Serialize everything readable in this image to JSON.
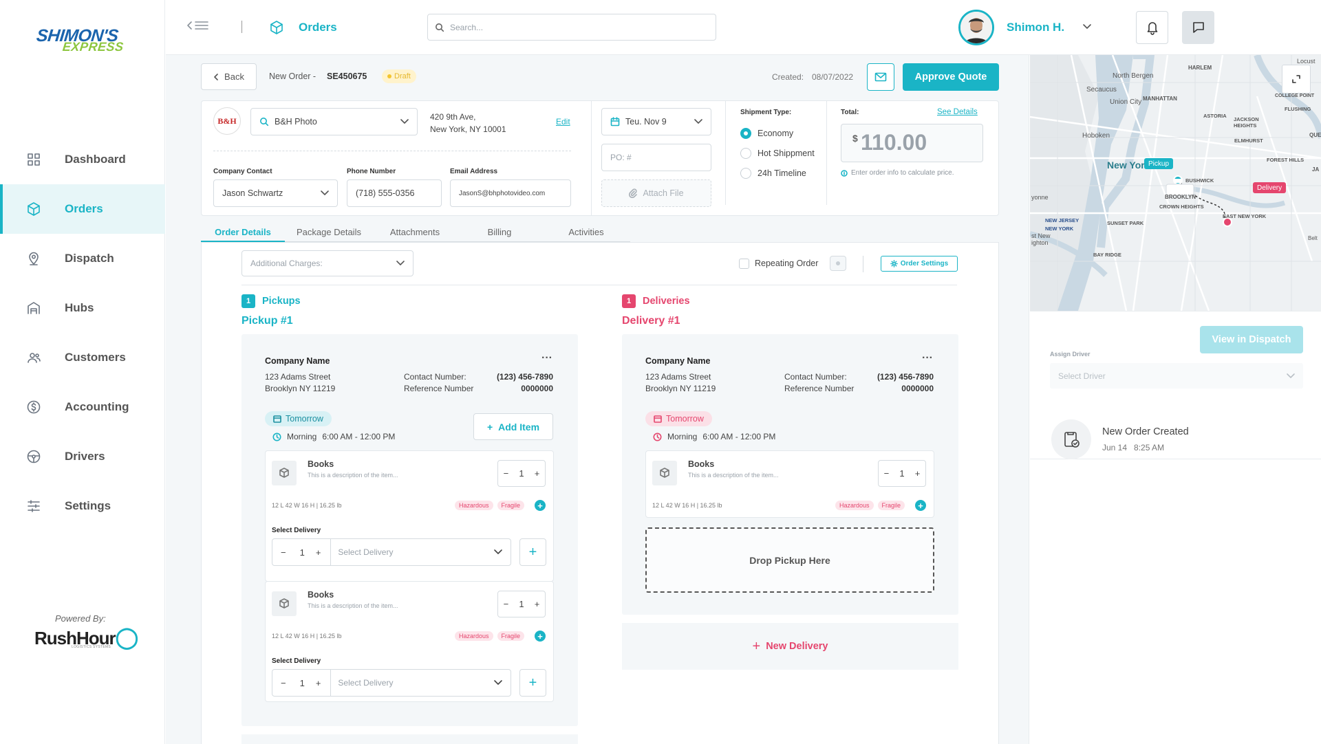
{
  "brand": {
    "line1": "SHIMON'S",
    "line2": "EXPRESS",
    "powered_by": "Powered By:",
    "partner": "RushHour",
    "partner_sub": "LOGISTICS SYSTEMS"
  },
  "nav": [
    {
      "label": "Dashboard",
      "icon": "grid-icon"
    },
    {
      "label": "Orders",
      "icon": "box-icon"
    },
    {
      "label": "Dispatch",
      "icon": "pin-icon"
    },
    {
      "label": "Hubs",
      "icon": "warehouse-icon"
    },
    {
      "label": "Customers",
      "icon": "users-icon"
    },
    {
      "label": "Accounting",
      "icon": "dollar-icon"
    },
    {
      "label": "Drivers",
      "icon": "steering-wheel-icon"
    },
    {
      "label": "Settings",
      "icon": "sliders-icon"
    }
  ],
  "topbar": {
    "page_title": "Orders",
    "search_placeholder": "Search...",
    "user_name": "Shimon H."
  },
  "order": {
    "back": "Back",
    "new_order": "New Order -",
    "order_id": "SE450675",
    "status": "Draft",
    "created_label": "Created:",
    "created_date": "08/07/2022",
    "approve": "Approve Quote"
  },
  "customer": {
    "logo_text": "B&H",
    "name": "B&H Photo",
    "address_1": "420 9th Ave,",
    "address_2": "New York, NY 10001",
    "edit": "Edit",
    "contact_label": "Company Contact",
    "contact": "Jason Schwartz",
    "phone_label": "Phone Number",
    "phone": "(718) 555-0356",
    "email_label": "Email Address",
    "email": "JasonS@bhphotovideo.com"
  },
  "schedule": {
    "date": "Teu. Nov 9",
    "po_placeholder": "PO: #",
    "attach": "Attach File"
  },
  "shipment": {
    "label": "Shipment Type:",
    "options": [
      "Economy",
      "Hot Shippment",
      "24h Timeline"
    ],
    "selected": "Economy"
  },
  "total": {
    "label": "Total:",
    "see_details": "See Details",
    "currency": "$",
    "amount": "110.00",
    "hint": "Enter order info to calculate price."
  },
  "tabs": [
    "Order Details",
    "Package Details",
    "Attachments",
    "Billing",
    "Activities"
  ],
  "controls": {
    "additional_charges": "Additional Charges:",
    "repeating": "Repeating Order",
    "order_settings": "Order Settings"
  },
  "pickups": {
    "count": "1",
    "label": "Pickups",
    "title": "Pickup #1",
    "company": "Company Name",
    "street": "123 Adams Street",
    "city": "Brooklyn NY 11219",
    "contact_label": "Contact Number:",
    "contact": "(123) 456-7890",
    "ref_label": "Reference Number",
    "ref": "0000000",
    "day": "Tomorrow",
    "slot_label": "Morning",
    "slot": "6:00 AM - 12:00 PM",
    "add_item": "Add Item",
    "items": [
      {
        "name": "Books",
        "desc": "This is a description of the item...",
        "qty": "1",
        "dims": "12 L  42  W 16 H | 16.25 lb",
        "tags": [
          "Hazardous",
          "Fragile"
        ],
        "select_label": "Select Delivery",
        "select_qty": "1",
        "select_placeholder": "Select Delivery"
      },
      {
        "name": "Books",
        "desc": "This is a description of the item...",
        "qty": "1",
        "dims": "12 L  42  W 16 H | 16.25 lb",
        "tags": [
          "Hazardous",
          "Fragile"
        ],
        "select_label": "Select Delivery",
        "select_qty": "1",
        "select_placeholder": "Select Delivery"
      }
    ]
  },
  "deliveries": {
    "count": "1",
    "label": "Deliveries",
    "title": "Delivery #1",
    "company": "Company Name",
    "street": "123 Adams Street",
    "city": "Brooklyn NY 11219",
    "contact_label": "Contact Number:",
    "contact": "(123) 456-7890",
    "ref_label": "Reference Number",
    "ref": "0000000",
    "day": "Tomorrow",
    "slot_label": "Morning",
    "slot": "6:00 AM - 12:00 PM",
    "item": {
      "name": "Books",
      "desc": "This is a description of the item...",
      "qty": "1",
      "dims": "12 L  42  W 16 H | 16.25 lb",
      "tags": [
        "Hazardous",
        "Fragile"
      ]
    },
    "drop": "Drop Pickup Here",
    "new_delivery": "New Delivery"
  },
  "map": {
    "labels": [
      "HARLEM",
      "North Bergen",
      "Secaucus",
      "Union City",
      "MANHATTAN",
      "Hoboken",
      "ASTORIA",
      "JACKSON HEIGHTS",
      "FLUSHING",
      "ELMHURST",
      "New York",
      "FOREST HILLS",
      "BUSHWICK",
      "BROOKLYN",
      "CROWN HEIGHTS",
      "EAST NEW YORK",
      "NEW JERSEY",
      "NEW YORK",
      "SUNSET PARK",
      "BAY RIDGE",
      "yonne",
      "st New ighton",
      "Locust Po",
      "COLLEGE POINT",
      "QUE",
      "JA",
      "Belt"
    ],
    "pickup": "Pickup",
    "delivery": "Delivery"
  },
  "dispatch": {
    "view": "View in Dispatch",
    "assign_label": "Assign Driver",
    "driver_placeholder": "Select Driver"
  },
  "activity": {
    "title": "New Order Created",
    "date": "Jun 14",
    "time": "8:25 AM"
  },
  "colors": {
    "accent": "#1ab4c6",
    "pink": "#e5466e",
    "brand_blue": "#1b64ad",
    "brand_green": "#8dc63f"
  }
}
